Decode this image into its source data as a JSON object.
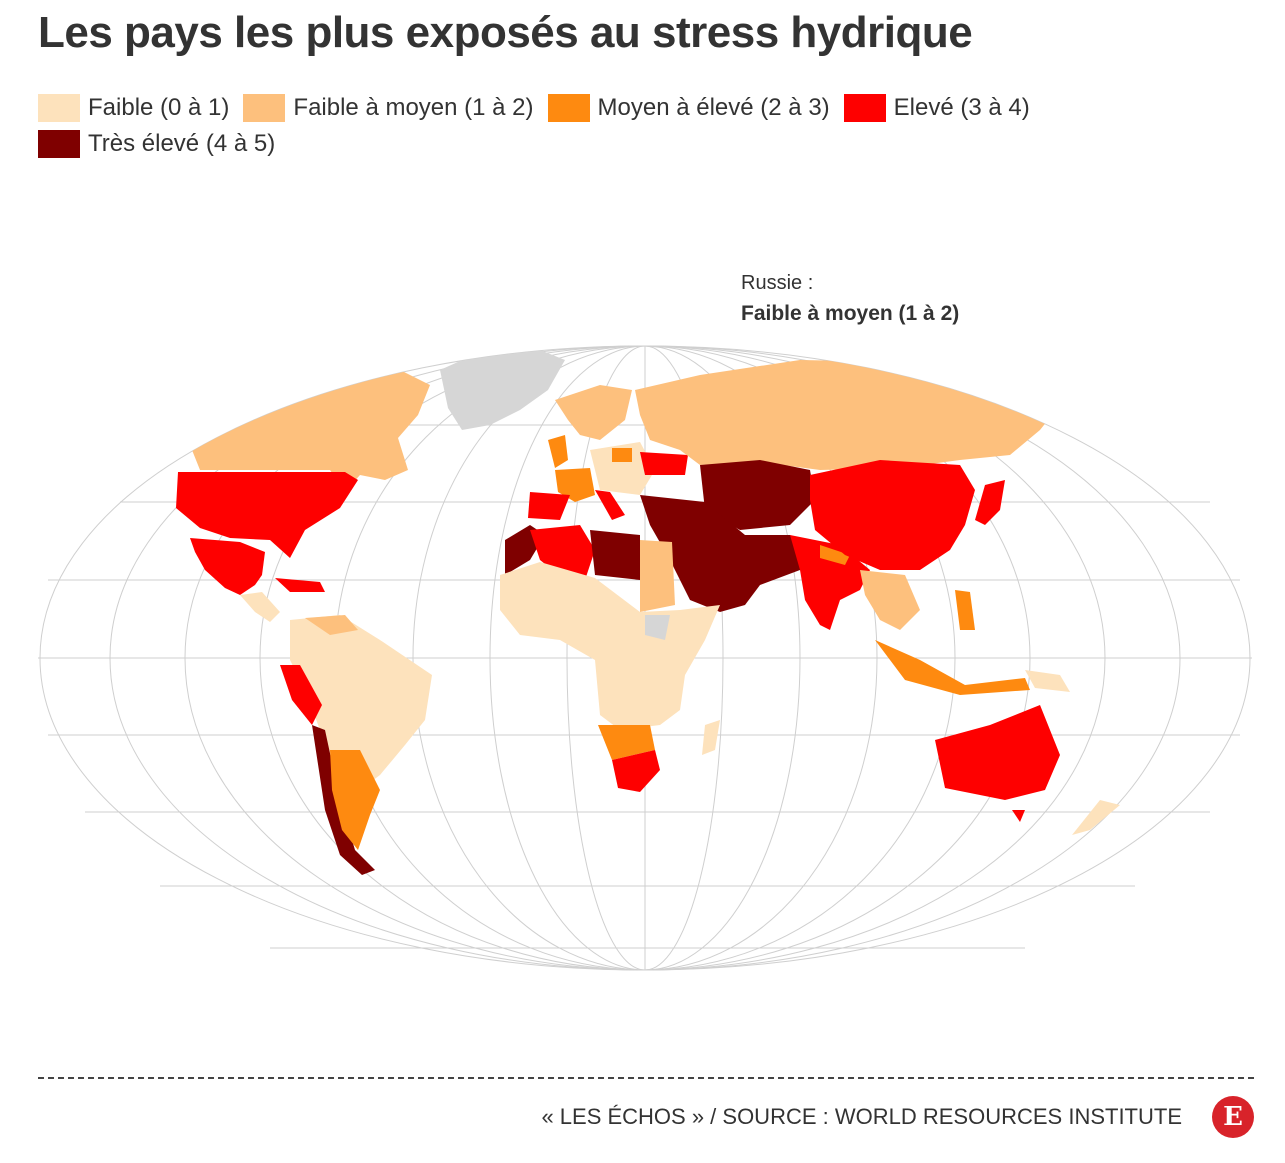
{
  "title": "Les pays les plus exposés au stress hydrique",
  "legend": [
    {
      "label": "Faible (0 à 1)",
      "color": "#fde2bc"
    },
    {
      "label": "Faible à moyen (1 à 2)",
      "color": "#fdc07d"
    },
    {
      "label": "Moyen à élevé (2 à 3)",
      "color": "#fe8a10"
    },
    {
      "label": "Elevé (3 à 4)",
      "color": "#fe0000"
    },
    {
      "label": "Très élevé (4 à 5)",
      "color": "#7f0000"
    }
  ],
  "no_data_color": "#d6d6d6",
  "tooltip": {
    "country": "Russie :",
    "value": "Faible à moyen (1 à 2)"
  },
  "source": "« LES ÉCHOS » / SOURCE : WORLD RESOURCES INSTITUTE",
  "logo_letter": "E"
}
